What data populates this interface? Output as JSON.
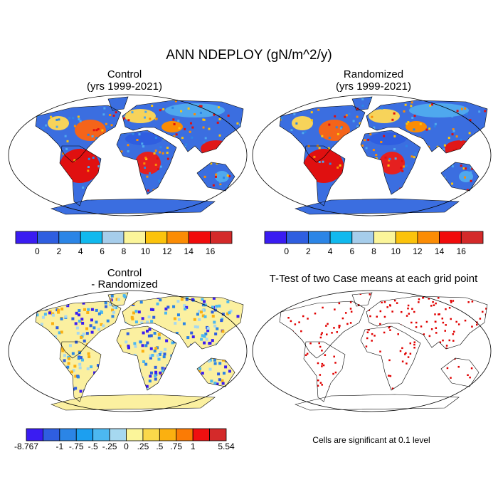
{
  "title": "ANN NDEPLOY (gN/m^2/y)",
  "panels": [
    {
      "title": "Control",
      "subtitle": "(yrs 1999-2021)",
      "colorbar": {
        "colors": [
          "#3a1cf2",
          "#2f5ee0",
          "#2b85e6",
          "#10b9ee",
          "#a6cdeb",
          "#fbf59a",
          "#fbc30c",
          "#fb8c04",
          "#f10c0c",
          "#d42a2a"
        ],
        "labels": [
          null,
          "0",
          "2",
          "4",
          "6",
          "8",
          "10",
          "12",
          "14",
          "16",
          null
        ]
      }
    },
    {
      "title": "Randomized",
      "subtitle": "(yrs 1999-2021)",
      "colorbar": {
        "colors": [
          "#3a1cf2",
          "#2f5ee0",
          "#2b85e6",
          "#10b9ee",
          "#a6cdeb",
          "#fbf59a",
          "#fbc30c",
          "#fb8c04",
          "#f10c0c",
          "#d42a2a"
        ],
        "labels": [
          null,
          "0",
          "2",
          "4",
          "6",
          "8",
          "10",
          "12",
          "14",
          "16",
          null
        ]
      }
    },
    {
      "title": "Control",
      "subtitle": "- Randomized",
      "colorbar": {
        "colors": [
          "#3a1cf2",
          "#2f5ee0",
          "#2b85e6",
          "#1c9ff0",
          "#4cb8f0",
          "#a6d8f0",
          "#fbf59a",
          "#fbd84a",
          "#fbb010",
          "#fb7b05",
          "#f01010",
          "#d42a2a"
        ],
        "labels": [
          "-8.767",
          null,
          "-1",
          "-.75",
          "-.5",
          "-.25",
          "0",
          ".25",
          ".5",
          ".75",
          "1",
          null,
          "5.54"
        ]
      }
    },
    {
      "title": "T-Test of two Case means at each grid point",
      "note": "Cells are significant at 0.1 level"
    }
  ]
}
